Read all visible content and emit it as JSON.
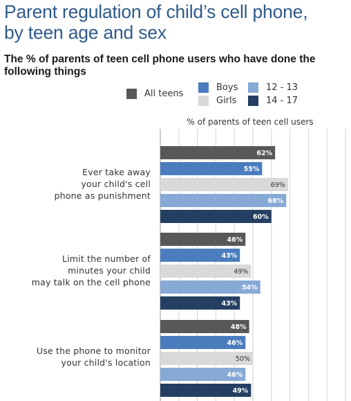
{
  "title_line1": "Parent regulation of child’s cell phone,",
  "title_line2": "by teen age and sex",
  "subtitle_line1": "The % of parents of teen cell phone users who have done the",
  "subtitle_line2": "following things",
  "colors": {
    "all_teens": "#58585a",
    "boys": "#4b7dbe",
    "girls": "#d9d9d9",
    "age_12_13": "#87a9d5",
    "age_14_17": "#243f62",
    "grid": "#d2d2d2"
  },
  "chart_data": {
    "type": "bar",
    "orientation": "horizontal",
    "title": "Parent regulation of child’s cell phone, by teen age and sex",
    "subtitle": "The % of parents of teen cell phone users who have done the following things",
    "xlabel": "% of parents of teen cell users",
    "xlim": [
      0,
      100
    ],
    "grid": true,
    "legend_position": "top-right",
    "categories": [
      {
        "lines": [
          "Ever take away",
          "your child's cell",
          "phone as punishment"
        ]
      },
      {
        "lines": [
          "Limit the number of",
          "minutes your child",
          "may talk on the cell phone"
        ]
      },
      {
        "lines": [
          "Use the phone to monitor",
          "your child's location"
        ]
      }
    ],
    "series": [
      {
        "name": "All teens",
        "color": "#58585a",
        "values": [
          62,
          46,
          48
        ],
        "labels": [
          "62%",
          "46%",
          "48%"
        ]
      },
      {
        "name": "Boys",
        "color": "#4b7dbe",
        "values": [
          55,
          43,
          46
        ],
        "labels": [
          "55%",
          "43%",
          "46%"
        ]
      },
      {
        "name": "Girls",
        "color": "#d9d9d9",
        "values": [
          69,
          49,
          50
        ],
        "labels": [
          "69%",
          "49%",
          "50%"
        ]
      },
      {
        "name": "12 - 13",
        "color": "#87a9d5",
        "values": [
          68,
          54,
          46
        ],
        "labels": [
          "68%",
          "54%",
          "46%"
        ]
      },
      {
        "name": "14 - 17",
        "color": "#243f62",
        "values": [
          60,
          43,
          49
        ],
        "labels": [
          "60%",
          "43%",
          "49%"
        ]
      }
    ]
  }
}
